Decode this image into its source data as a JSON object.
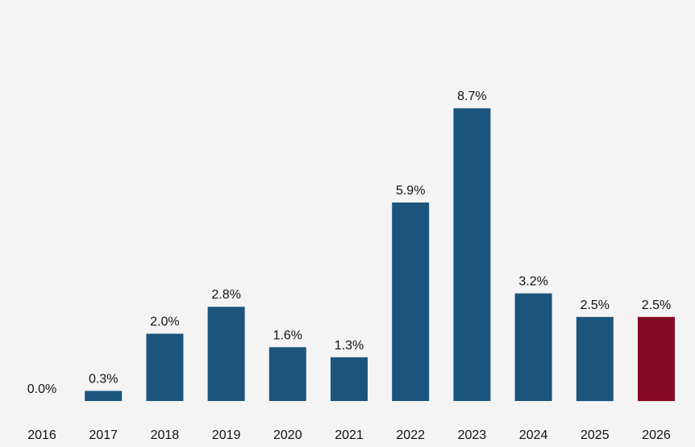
{
  "chart_data": {
    "type": "bar",
    "categories": [
      "2016",
      "2017",
      "2018",
      "2019",
      "2020",
      "2021",
      "2022",
      "2023",
      "2024",
      "2025",
      "2026"
    ],
    "values": [
      0.0,
      0.3,
      2.0,
      2.8,
      1.6,
      1.3,
      5.9,
      8.7,
      3.2,
      2.5,
      2.5
    ],
    "value_labels": [
      "0.0%",
      "0.3%",
      "2.0%",
      "2.8%",
      "1.6%",
      "1.3%",
      "5.9%",
      "8.7%",
      "3.2%",
      "2.5%",
      "2.5%"
    ],
    "title": "",
    "xlabel": "",
    "ylabel": "",
    "ylim": [
      0,
      9.5
    ],
    "grid": false,
    "legend": "none",
    "colors": {
      "default": "#1b557d",
      "highlight": "#850a24",
      "background": "#f4f4f4"
    },
    "highlight_index": 10
  }
}
